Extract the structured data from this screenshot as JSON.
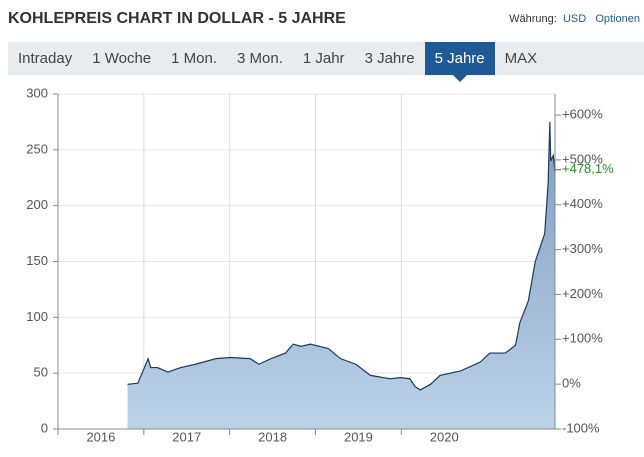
{
  "header": {
    "title": "KOHLEPREIS CHART IN DOLLAR - 5 JAHRE",
    "currency_label": "Währung:",
    "currency": "USD",
    "options": "Optionen"
  },
  "tabs": [
    "Intraday",
    "1 Woche",
    "1 Mon.",
    "3 Mon.",
    "1 Jahr",
    "3 Jahre",
    "5 Jahre",
    "MAX"
  ],
  "active_tab": 6,
  "chart_data": {
    "type": "area",
    "x": [
      2016.81,
      2016.93,
      2017.05,
      2017.08,
      2017.16,
      2017.28,
      2017.43,
      2017.6,
      2017.84,
      2018.01,
      2018.24,
      2018.34,
      2018.48,
      2018.65,
      2018.74,
      2018.83,
      2018.94,
      2019.15,
      2019.29,
      2019.47,
      2019.64,
      2019.87,
      2019.99,
      2020.1,
      2020.16,
      2020.22,
      2020.34,
      2020.45,
      2020.69,
      2020.92,
      2021.03,
      2021.21,
      2021.33,
      2021.38,
      2021.48,
      2021.56,
      2021.67,
      2021.71,
      2021.73,
      2021.74,
      2021.77,
      2021.79
    ],
    "values": [
      40,
      41,
      63,
      55,
      55,
      51,
      55,
      58,
      63,
      64,
      63,
      58,
      63,
      68,
      76,
      74,
      76,
      72,
      63,
      58,
      48,
      45,
      46,
      45,
      38,
      35,
      40,
      48,
      52,
      60,
      68,
      68,
      75,
      95,
      115,
      150,
      175,
      220,
      275,
      240,
      245,
      230
    ],
    "color": "#1b3a5c",
    "xlim": [
      2016,
      2021.79
    ],
    "xticks": [
      2016,
      2017,
      2018,
      2019,
      2020
    ],
    "ylim": [
      0,
      300
    ],
    "yticks": [
      0,
      50,
      100,
      150,
      200,
      250,
      300
    ],
    "y2lim": [
      -100,
      647
    ],
    "y2ticks": [
      {
        "value": 600,
        "label": "+600%"
      },
      {
        "value": 500,
        "label": "+500%"
      },
      {
        "value": 400,
        "label": "+400%"
      },
      {
        "value": 300,
        "label": "+300%"
      },
      {
        "value": 200,
        "label": "+200%"
      },
      {
        "value": 100,
        "label": "+100%"
      },
      {
        "value": 0,
        "label": "0%"
      },
      {
        "value": -100,
        "label": "-100%"
      }
    ],
    "annotation": {
      "value": 478.1,
      "label": "+478,1%"
    },
    "grid": true
  }
}
